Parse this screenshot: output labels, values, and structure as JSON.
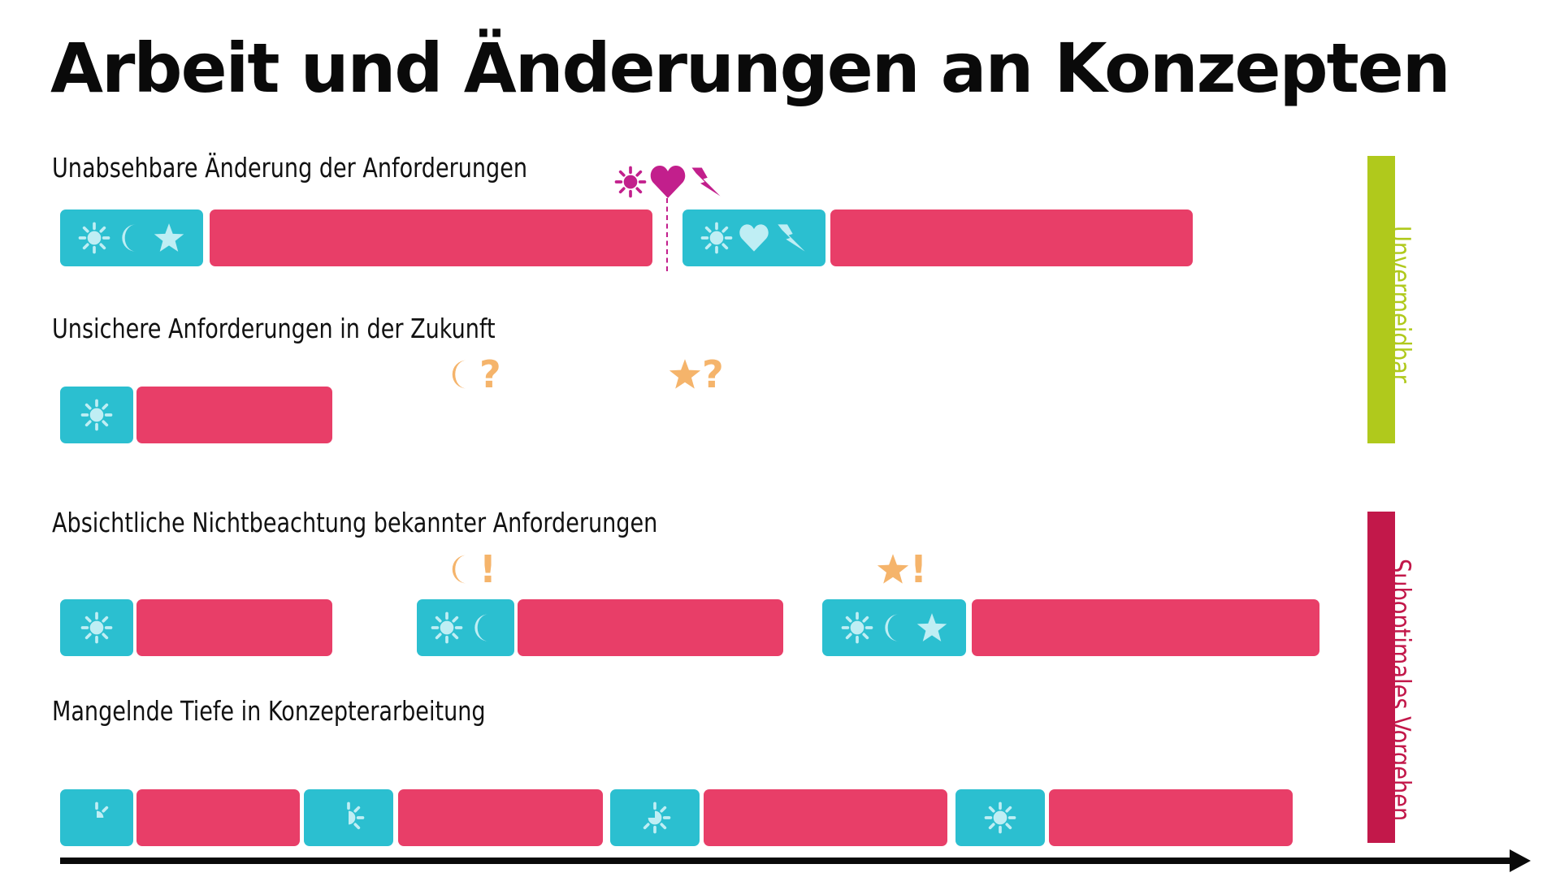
{
  "title": "Arbeit und Änderungen an Konzepten",
  "colors": {
    "cyan": "#2bbfd0",
    "red": "#e83e68",
    "icon_light": "#bfeef4",
    "magenta": "#c21f8c",
    "orange": "#f5b46b",
    "green": "#b0c91c",
    "crimson": "#c2184a",
    "arrow": "#0a0a0a"
  },
  "rows": [
    {
      "label": "Unabsehbare Änderung der Anforderungen",
      "segments": [
        {
          "color": "cyan",
          "icons": [
            "sun-icon",
            "moon-icon",
            "star-icon"
          ]
        },
        {
          "color": "red"
        },
        {
          "color": "cyan",
          "icons": [
            "sun-icon",
            "heart-icon",
            "lightning-icon"
          ]
        },
        {
          "color": "red"
        }
      ],
      "annotations": [
        {
          "type": "change-marker",
          "icons": [
            "sun-icon",
            "heart-icon",
            "lightning-icon"
          ]
        }
      ]
    },
    {
      "label": "Unsichere Anforderungen in der Zukunft",
      "segments": [
        {
          "color": "cyan",
          "icons": [
            "sun-icon"
          ]
        },
        {
          "color": "red"
        }
      ],
      "annotations": [
        {
          "icon": "moon-icon",
          "text": "?"
        },
        {
          "icon": "star-icon",
          "text": "?"
        }
      ]
    },
    {
      "label": "Absichtliche Nichtbeachtung bekannter Anforderungen",
      "segments": [
        {
          "color": "cyan",
          "icons": [
            "sun-icon"
          ]
        },
        {
          "color": "red"
        },
        {
          "color": "cyan",
          "icons": [
            "sun-icon",
            "moon-icon"
          ]
        },
        {
          "color": "red"
        },
        {
          "color": "cyan",
          "icons": [
            "sun-icon",
            "moon-icon",
            "star-icon"
          ]
        },
        {
          "color": "red"
        }
      ],
      "annotations": [
        {
          "icon": "moon-icon",
          "text": "!"
        },
        {
          "icon": "star-icon",
          "text": "!"
        }
      ]
    },
    {
      "label": "Mangelnde Tiefe in Konzepterarbeitung",
      "segments": [
        {
          "color": "cyan",
          "icons": [
            "sun-fragment-icon"
          ],
          "fill_fraction": 0.25
        },
        {
          "color": "red"
        },
        {
          "color": "cyan",
          "icons": [
            "sun-fragment-icon"
          ],
          "fill_fraction": 0.5
        },
        {
          "color": "red"
        },
        {
          "color": "cyan",
          "icons": [
            "sun-fragment-icon"
          ],
          "fill_fraction": 0.75
        },
        {
          "color": "red"
        },
        {
          "color": "cyan",
          "icons": [
            "sun-icon"
          ],
          "fill_fraction": 1.0
        },
        {
          "color": "red"
        }
      ]
    }
  ],
  "side_labels": [
    {
      "text": "Unvermeidbar",
      "color": "green"
    },
    {
      "text": "Suboptimales Vorgehen",
      "color": "crimson"
    }
  ],
  "axis": {
    "type": "time-arrow"
  }
}
